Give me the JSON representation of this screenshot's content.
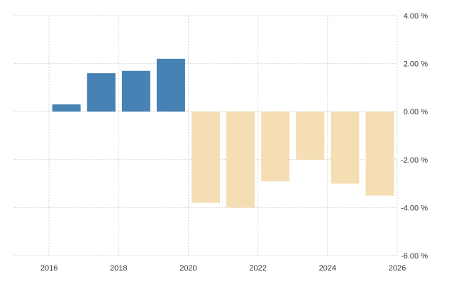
{
  "chart_data": {
    "type": "bar",
    "x": [
      2016,
      2017,
      2018,
      2019,
      2020,
      2021,
      2022,
      2023,
      2024,
      2025
    ],
    "values": [
      0.3,
      1.6,
      1.7,
      2.2,
      -3.8,
      -4.0,
      -2.9,
      -2.0,
      -3.0,
      -3.5
    ],
    "xlim": [
      2015,
      2026
    ],
    "ylim": [
      -6,
      4
    ],
    "x_ticks": [
      2016,
      2018,
      2020,
      2022,
      2024,
      2026
    ],
    "x_tick_labels": [
      "2016",
      "2018",
      "2020",
      "2022",
      "2024",
      "2026"
    ],
    "y_ticks": [
      4,
      2,
      0,
      -2,
      -4,
      -6
    ],
    "y_tick_labels": [
      "4.00 %",
      "2.00 %",
      "0.00 %",
      "-2.00 %",
      "-4.00 %",
      "-6.00 %"
    ],
    "grid": true,
    "y_axis_side": "right",
    "colors": {
      "actual": "#4682b4",
      "forecast": "#f5deb3",
      "grid": "#d4d4d4"
    },
    "forecast_from": 2020
  }
}
